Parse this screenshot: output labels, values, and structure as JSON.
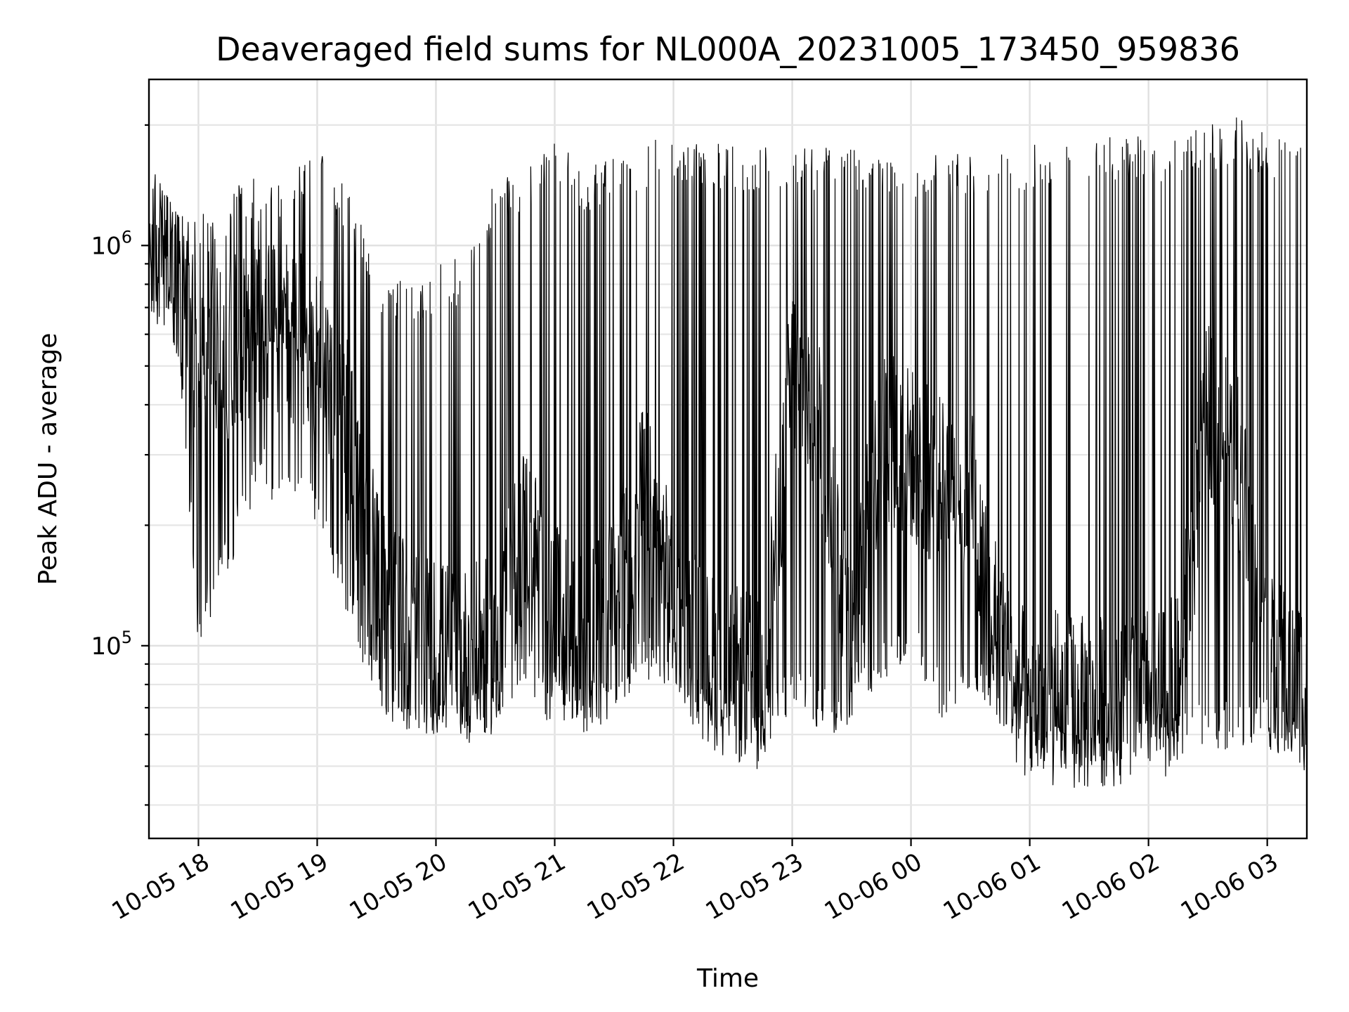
{
  "chart_data": {
    "type": "line",
    "title": "Deaveraged field sums for NL000A_20231005_173450_959836",
    "xlabel": "Time",
    "ylabel": "Peak ADU - average",
    "yscale": "log",
    "ylim": [
      33000,
      2600000
    ],
    "xlim": [
      "2023-10-05 17:35",
      "2023-10-06 03:20"
    ],
    "xticks": [
      {
        "t": "2023-10-05 18:00",
        "label": "10-05 18"
      },
      {
        "t": "2023-10-05 19:00",
        "label": "10-05 19"
      },
      {
        "t": "2023-10-05 20:00",
        "label": "10-05 20"
      },
      {
        "t": "2023-10-05 21:00",
        "label": "10-05 21"
      },
      {
        "t": "2023-10-05 22:00",
        "label": "10-05 22"
      },
      {
        "t": "2023-10-05 23:00",
        "label": "10-05 23"
      },
      {
        "t": "2023-10-06 00:00",
        "label": "10-06 00"
      },
      {
        "t": "2023-10-06 01:00",
        "label": "10-06 01"
      },
      {
        "t": "2023-10-06 02:00",
        "label": "10-06 02"
      },
      {
        "t": "2023-10-06 03:00",
        "label": "10-06 03"
      }
    ],
    "yticks": [
      {
        "value": 100000,
        "base": "10",
        "exp": "5"
      },
      {
        "value": 1000000,
        "base": "10",
        "exp": "6"
      }
    ],
    "grid": true,
    "series_color": "#000000",
    "envelope": {
      "x": [
        "2023-10-05 17:35",
        "2023-10-05 17:50",
        "2023-10-05 18:00",
        "2023-10-05 18:15",
        "2023-10-05 18:30",
        "2023-10-05 18:45",
        "2023-10-05 19:00",
        "2023-10-05 19:15",
        "2023-10-05 19:30",
        "2023-10-05 19:45",
        "2023-10-05 20:00",
        "2023-10-05 20:15",
        "2023-10-05 20:30",
        "2023-10-05 20:45",
        "2023-10-05 21:00",
        "2023-10-05 21:15",
        "2023-10-05 21:30",
        "2023-10-05 21:45",
        "2023-10-05 22:00",
        "2023-10-05 22:15",
        "2023-10-05 22:30",
        "2023-10-05 22:45",
        "2023-10-05 23:00",
        "2023-10-05 23:15",
        "2023-10-05 23:30",
        "2023-10-05 23:45",
        "2023-10-06 00:00",
        "2023-10-06 00:15",
        "2023-10-06 00:30",
        "2023-10-06 00:45",
        "2023-10-06 01:00",
        "2023-10-06 01:15",
        "2023-10-06 01:30",
        "2023-10-06 01:45",
        "2023-10-06 02:00",
        "2023-10-06 02:15",
        "2023-10-06 02:30",
        "2023-10-06 02:45",
        "2023-10-06 03:00",
        "2023-10-06 03:20"
      ],
      "base": [
        1000000,
        900000,
        500000,
        550000,
        650000,
        600000,
        550000,
        350000,
        150000,
        110000,
        100000,
        95000,
        100000,
        200000,
        120000,
        100000,
        130000,
        250000,
        130000,
        95000,
        85000,
        80000,
        500000,
        350000,
        100000,
        350000,
        300000,
        250000,
        250000,
        100000,
        70000,
        75000,
        70000,
        75000,
        75000,
        80000,
        400000,
        300000,
        90000,
        80000
      ],
      "low": [
        800000,
        500000,
        100000,
        150000,
        250000,
        200000,
        200000,
        120000,
        70000,
        60000,
        60000,
        60000,
        60000,
        80000,
        60000,
        60000,
        65000,
        80000,
        80000,
        60000,
        55000,
        50000,
        70000,
        60000,
        60000,
        80000,
        90000,
        65000,
        70000,
        65000,
        48000,
        48000,
        50000,
        50000,
        50000,
        52000,
        55000,
        55000,
        55000,
        50000
      ],
      "high": [
        1500000,
        1100000,
        1200000,
        1400000,
        1500000,
        1500000,
        1900000,
        1400000,
        900000,
        800000,
        900000,
        950000,
        1500000,
        1600000,
        1800000,
        1600000,
        1700000,
        1800000,
        1900000,
        1800000,
        1800000,
        1800000,
        1800000,
        1800000,
        1800000,
        1700000,
        1700000,
        1700000,
        1700000,
        1800000,
        1800000,
        1800000,
        1800000,
        1900000,
        1900000,
        1900000,
        2000000,
        2100000,
        1900000,
        1900000
      ]
    }
  }
}
